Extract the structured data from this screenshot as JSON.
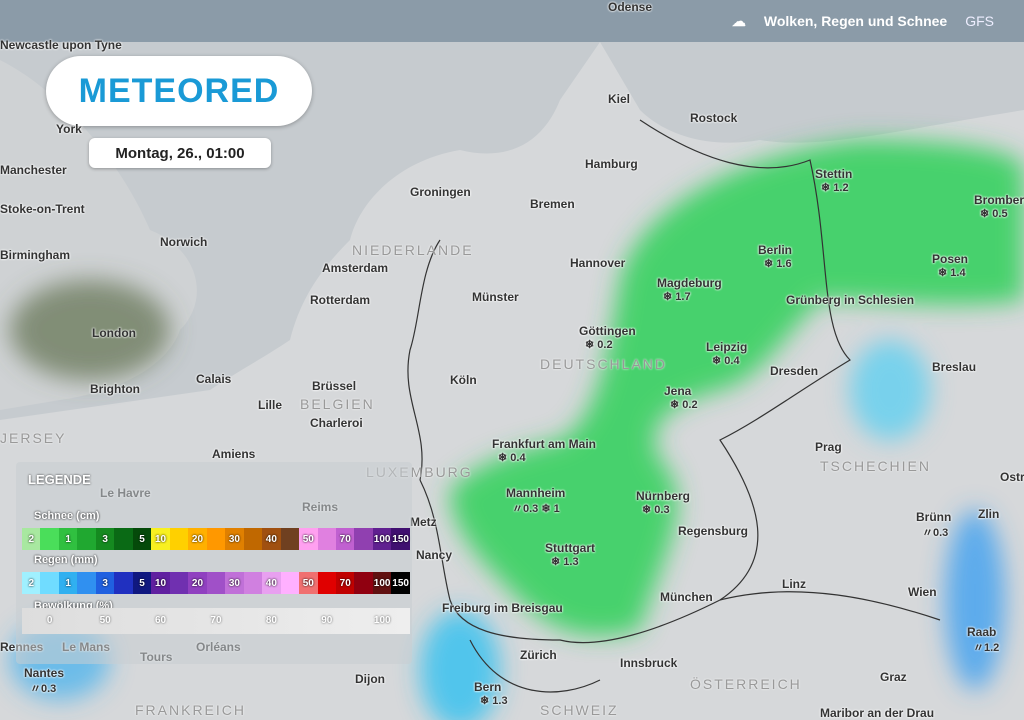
{
  "header": {
    "title": "Wolken, Regen und Schnee",
    "model": "GFS",
    "icon": "cloud-rain-icon"
  },
  "logo": "METEORED",
  "date": "Montag, 26., 01:00",
  "countries": [
    "DEUTSCHLAND",
    "NIEDERLANDE",
    "BELGIEN",
    "LUXEMBURG",
    "TSCHECHIEN",
    "FRANKREICH",
    "SCHWEIZ",
    "ÖSTERREICH",
    "JERSEY"
  ],
  "cities": [
    {
      "name": "Odense"
    },
    {
      "name": "Newcastle upon Tyne"
    },
    {
      "name": "York"
    },
    {
      "name": "Manchester"
    },
    {
      "name": "Stoke-on-Trent"
    },
    {
      "name": "Birmingham"
    },
    {
      "name": "Norwich"
    },
    {
      "name": "London"
    },
    {
      "name": "Brighton"
    },
    {
      "name": "Kiel"
    },
    {
      "name": "Rostock"
    },
    {
      "name": "Hamburg"
    },
    {
      "name": "Groningen"
    },
    {
      "name": "Bremen"
    },
    {
      "name": "Amsterdam"
    },
    {
      "name": "Rotterdam"
    },
    {
      "name": "Hannover"
    },
    {
      "name": "Münster"
    },
    {
      "name": "Calais"
    },
    {
      "name": "Brüssel"
    },
    {
      "name": "Lille"
    },
    {
      "name": "Charleroi"
    },
    {
      "name": "Köln"
    },
    {
      "name": "Dresden"
    },
    {
      "name": "Breslau"
    },
    {
      "name": "Prag"
    },
    {
      "name": "Amiens"
    },
    {
      "name": "Le Havre"
    },
    {
      "name": "Reims"
    },
    {
      "name": "Metz"
    },
    {
      "name": "Nancy"
    },
    {
      "name": "Regensburg"
    },
    {
      "name": "München"
    },
    {
      "name": "Linz"
    },
    {
      "name": "Wien"
    },
    {
      "name": "Zlin"
    },
    {
      "name": "Ostrava"
    },
    {
      "name": "Freiburg im Breisgau"
    },
    {
      "name": "Zürich"
    },
    {
      "name": "Innsbruck"
    },
    {
      "name": "Graz"
    },
    {
      "name": "Maribor an der Drau"
    },
    {
      "name": "Grünberg in Schlesien"
    },
    {
      "name": "Rennes"
    },
    {
      "name": "Le Mans"
    },
    {
      "name": "Orléans"
    },
    {
      "name": "Tours"
    },
    {
      "name": "Dijon"
    }
  ],
  "values": [
    {
      "name": "Stettin",
      "v": "❄ 1.2"
    },
    {
      "name": "Bromberg",
      "v": "❄ 0.5"
    },
    {
      "name": "Berlin",
      "v": "❄ 1.6"
    },
    {
      "name": "Posen",
      "v": "❄ 1.4"
    },
    {
      "name": "Magdeburg",
      "v": "❄ 1.7"
    },
    {
      "name": "Göttingen",
      "v": "❄ 0.2"
    },
    {
      "name": "Leipzig",
      "v": "❄ 0.4"
    },
    {
      "name": "Jena",
      "v": "❄ 0.2"
    },
    {
      "name": "Frankfurt am Main",
      "v": "❄ 0.4"
    },
    {
      "name": "Mannheim",
      "v": "〃0.3 ❄ 1"
    },
    {
      "name": "Nürnberg",
      "v": "❄ 0.3"
    },
    {
      "name": "Stuttgart",
      "v": "❄ 1.3"
    },
    {
      "name": "Brünn",
      "v": "〃0.3"
    },
    {
      "name": "Raab",
      "v": "〃1.2"
    },
    {
      "name": "Nantes",
      "v": "〃0.3"
    },
    {
      "name": "Bern",
      "v": "❄ 1.3"
    }
  ],
  "legend": {
    "title": "LEGENDE",
    "snow": {
      "label": "Schnee (cm)",
      "ticks": [
        "2",
        "",
        "1",
        "",
        "3",
        "",
        "5",
        "10",
        "",
        "20",
        "",
        "30",
        "",
        "40",
        "",
        "50",
        "",
        "70",
        "",
        "100",
        "150"
      ],
      "colors": [
        "#a8e8a0",
        "#4ade5a",
        "#30c040",
        "#20a830",
        "#158a20",
        "#0a6a15",
        "#054a0a",
        "#f8f020",
        "#ffd000",
        "#ffb000",
        "#ff9800",
        "#e08000",
        "#c06800",
        "#a05010",
        "#704020",
        "#ffa0f0",
        "#e080e0",
        "#c060d0",
        "#9040b0",
        "#602090",
        "#401070"
      ]
    },
    "rain": {
      "label": "Regen (mm)",
      "ticks": [
        "2",
        "",
        "1",
        "",
        "3",
        "",
        "5",
        "10",
        "",
        "20",
        "",
        "30",
        "",
        "40",
        "",
        "50",
        "",
        "70",
        "",
        "100",
        "150"
      ],
      "colors": [
        "#a0f0ff",
        "#70dcff",
        "#30b0f0",
        "#3090f0",
        "#2060e0",
        "#2030c0",
        "#101880",
        "#6020a0",
        "#7030b0",
        "#9040c0",
        "#a050c8",
        "#c070d8",
        "#d080e0",
        "#e8a0f0",
        "#ffb0ff",
        "#f07070",
        "#e00000",
        "#c00000",
        "#900010",
        "#601010",
        "#000000"
      ]
    },
    "clouds": {
      "label": "Bewölkung (%)",
      "ticks": [
        "0",
        "50",
        "60",
        "70",
        "80",
        "90",
        "100"
      ]
    }
  }
}
